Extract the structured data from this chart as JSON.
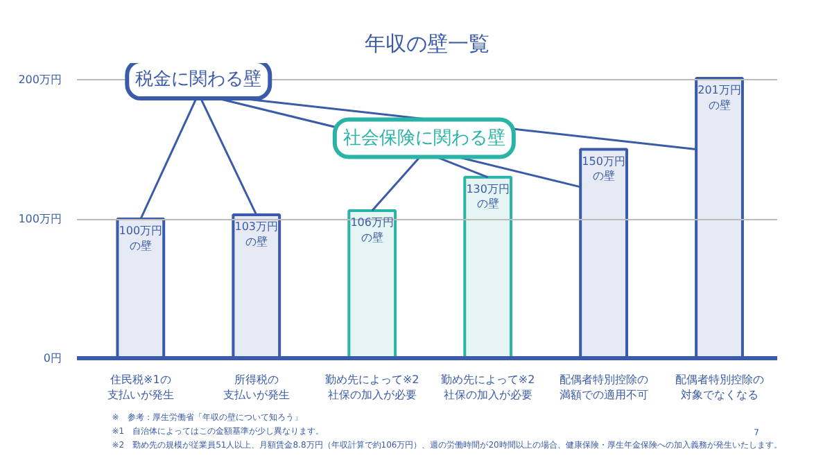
{
  "chart_data": {
    "type": "bar",
    "title": "年収の壁一覧",
    "categories": [
      "住民税※1の支払いが発生",
      "所得税の支払いが発生",
      "勤め先によって※2社保の加入が必要",
      "勤め先によって※2社保の加入が必要",
      "配偶者特別控除の満額での適用不可",
      "配偶者特別控除の対象でなくなる"
    ],
    "values": [
      100,
      103,
      106,
      130,
      150,
      201
    ],
    "value_labels": [
      "100万円の壁",
      "103万円の壁",
      "106万円の壁",
      "130万円の壁",
      "150万円の壁",
      "201万円の壁"
    ],
    "colors": [
      "#3a5ba8",
      "#3a5ba8",
      "#2bb3a8",
      "#2bb3a8",
      "#3a5ba8",
      "#3a5ba8"
    ],
    "ylim": [
      0,
      212
    ],
    "yticks": [
      {
        "value": 0,
        "label": "0円"
      },
      {
        "value": 100,
        "label": "100万円"
      },
      {
        "value": 200,
        "label": "200万円"
      }
    ],
    "grid": "y",
    "annotations": [
      {
        "text": "税金に関わる壁",
        "x": "住民税※1の支払いが発生",
        "y": 100
      },
      {
        "text": "社会保険に関わる壁",
        "x": "勤め先によって※2社保の加入が必要",
        "y": 106
      },
      "※　参考：厚生労働省「年収の壁について知ろう」",
      "※1　自治体によってはこの金額基準が少し異なります。",
      "※2　勤め先の規模が従業員51人以上、月額賃金8.8万円（年収計算で約106万円）、週の労働時間が20時間以上の場合、健康保険・厚生年金保険への加入義務が発生いたします。",
      "7"
    ]
  }
}
